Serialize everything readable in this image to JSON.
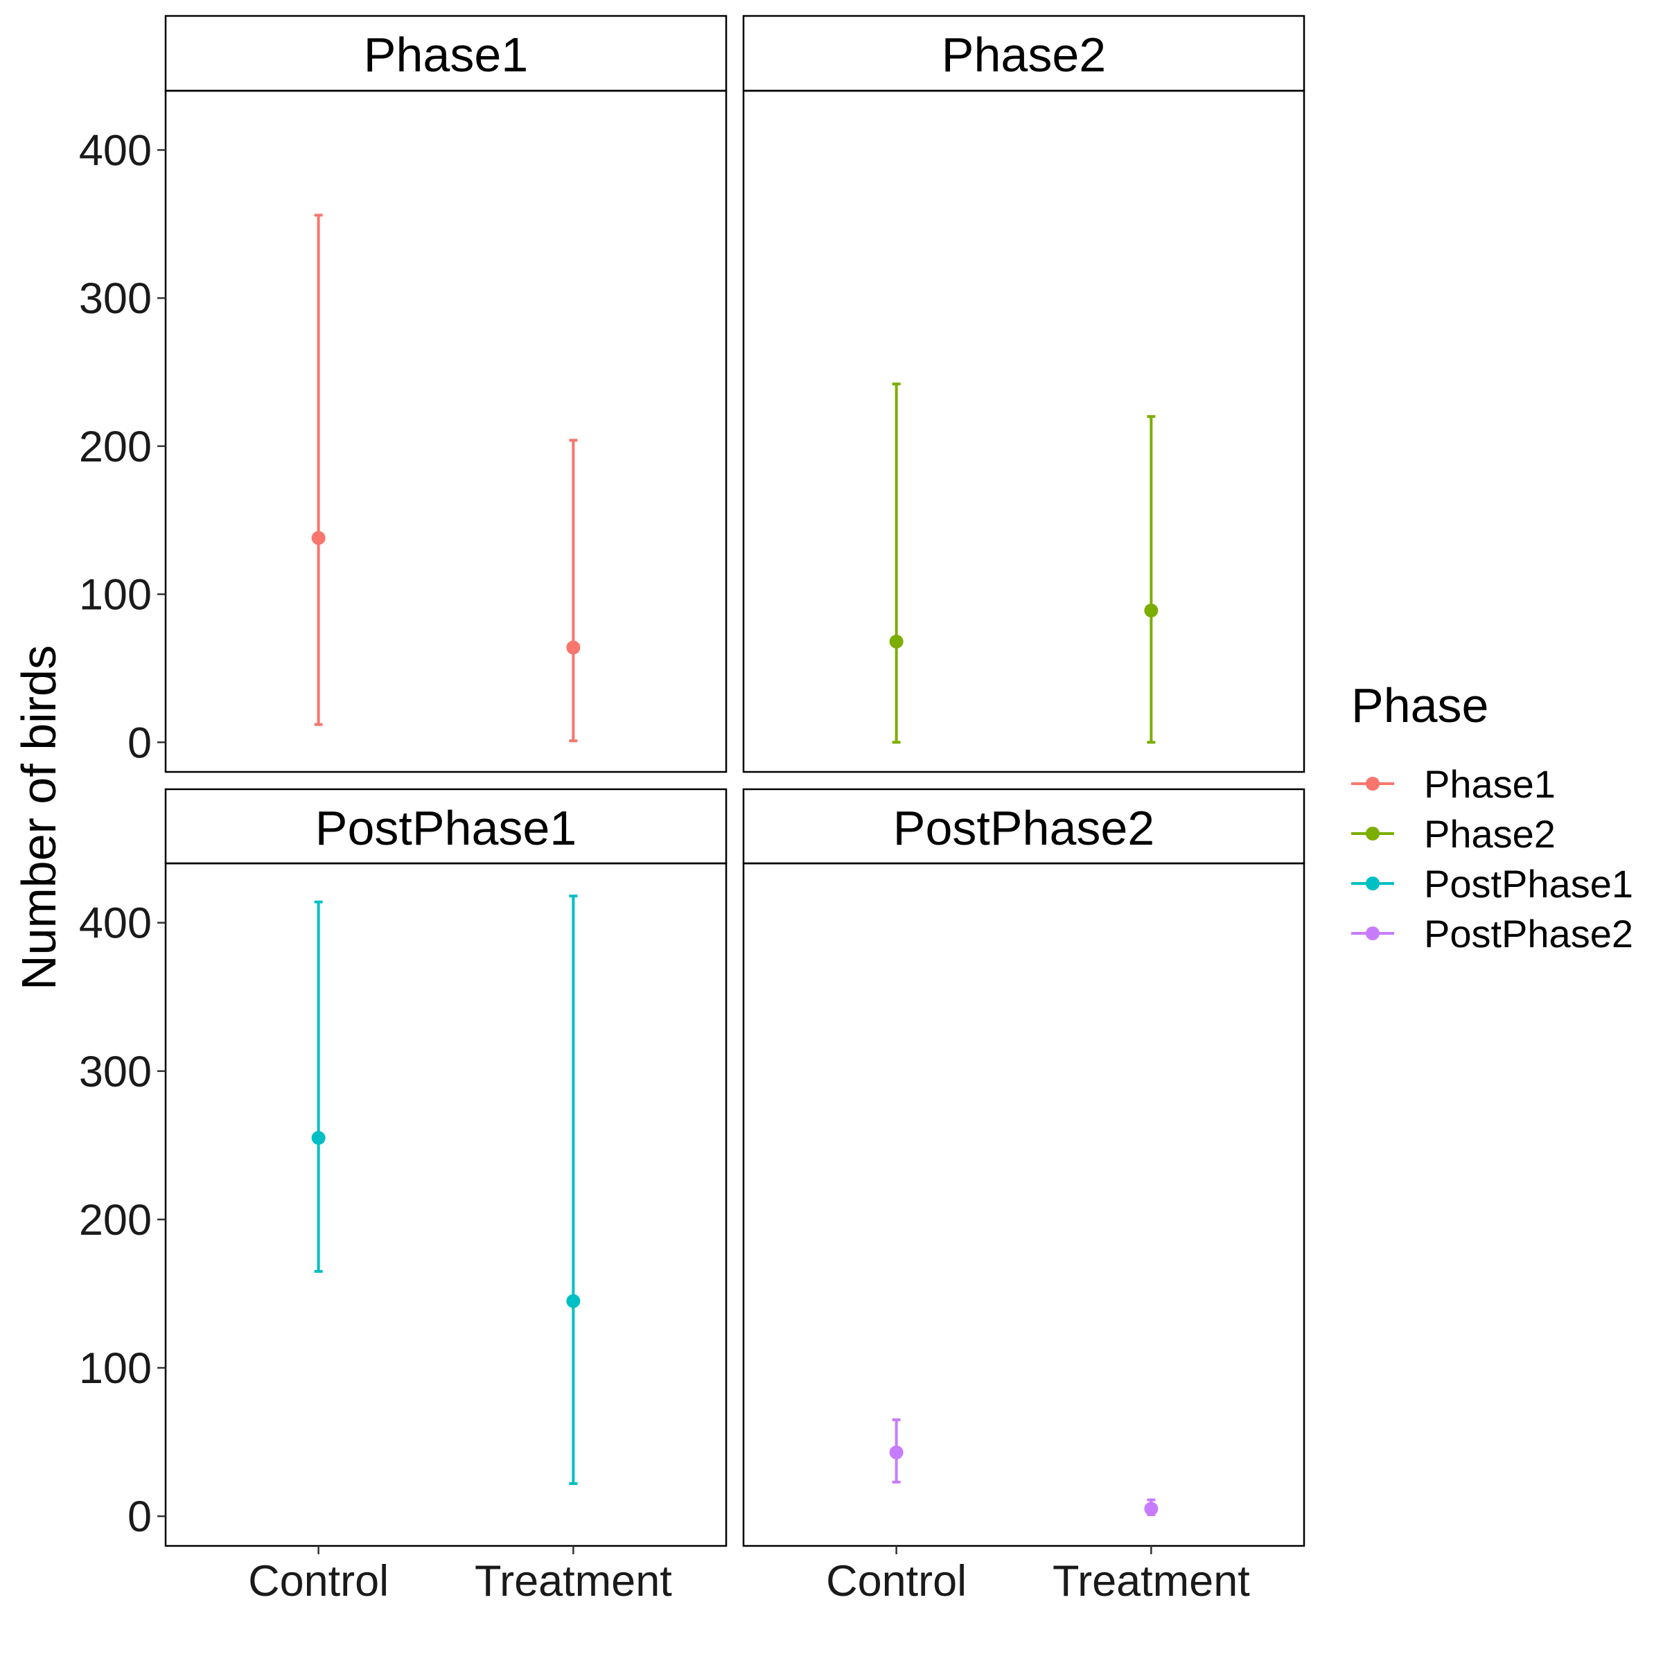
{
  "chart_data": {
    "type": "scatter",
    "subtype": "point-range faceted",
    "xlabel": "",
    "ylabel": "Number of birds",
    "ylim": [
      -20,
      440
    ],
    "yticks": [
      0,
      100,
      200,
      300,
      400
    ],
    "categories": [
      "Control",
      "Treatment"
    ],
    "legend": {
      "title": "Phase",
      "placement": "right",
      "items": [
        {
          "label": "Phase1",
          "color": "#F8766D"
        },
        {
          "label": "Phase2",
          "color": "#7CAE00"
        },
        {
          "label": "PostPhase1",
          "color": "#00BFC4"
        },
        {
          "label": "PostPhase2",
          "color": "#C77CFF"
        }
      ]
    },
    "facets": [
      {
        "name": "Phase1",
        "color": "#F8766D",
        "points": [
          {
            "x": "Control",
            "y": 138,
            "ymin": 12,
            "ymax": 356
          },
          {
            "x": "Treatment",
            "y": 64,
            "ymin": 1,
            "ymax": 204
          }
        ]
      },
      {
        "name": "Phase2",
        "color": "#7CAE00",
        "points": [
          {
            "x": "Control",
            "y": 68,
            "ymin": 0,
            "ymax": 242
          },
          {
            "x": "Treatment",
            "y": 89,
            "ymin": 0,
            "ymax": 220
          }
        ]
      },
      {
        "name": "PostPhase1",
        "color": "#00BFC4",
        "points": [
          {
            "x": "Control",
            "y": 255,
            "ymin": 165,
            "ymax": 414
          },
          {
            "x": "Treatment",
            "y": 145,
            "ymin": 22,
            "ymax": 418
          }
        ]
      },
      {
        "name": "PostPhase2",
        "color": "#C77CFF",
        "points": [
          {
            "x": "Control",
            "y": 43,
            "ymin": 23,
            "ymax": 65
          },
          {
            "x": "Treatment",
            "y": 5,
            "ymin": 1,
            "ymax": 11
          }
        ]
      }
    ]
  }
}
